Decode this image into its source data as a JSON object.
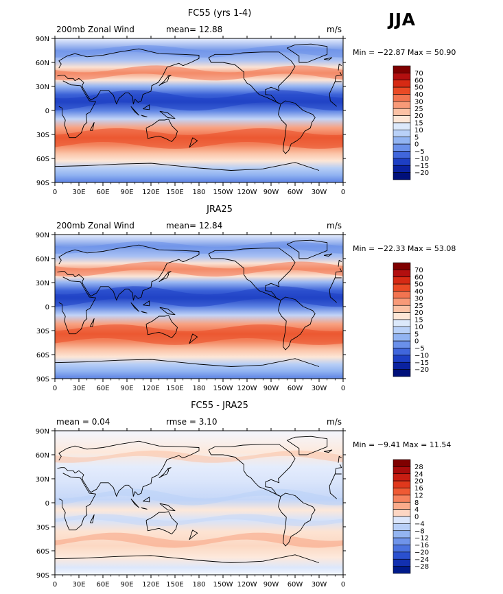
{
  "season": "JJA",
  "chart_data": [
    {
      "type": "heatmap",
      "title": "FC55 (yrs 1-4)",
      "left_label": "200mb Zonal Wind",
      "center_label": "mean=   12.88",
      "units": "m/s",
      "minmax": "Min = −22.87  Max =   50.90",
      "x_ticks": [
        "0",
        "30E",
        "60E",
        "90E",
        "120E",
        "150E",
        "180",
        "150W",
        "120W",
        "90W",
        "60W",
        "30W",
        "0"
      ],
      "y_ticks": [
        "90N",
        "60N",
        "30N",
        "0",
        "30S",
        "60S",
        "90S"
      ],
      "levels": [
        "70",
        "60",
        "50",
        "40",
        "30",
        "25",
        "20",
        "15",
        "10",
        "5",
        "0",
        "−5",
        "−10",
        "−15",
        "−20"
      ],
      "colors": [
        "#7f0000",
        "#b30f0f",
        "#d62a14",
        "#ea4a25",
        "#f27450",
        "#f89a78",
        "#fbc1a4",
        "#fde6d6",
        "#dce9fb",
        "#b9d1f8",
        "#92b4f2",
        "#6a90ea",
        "#4066dc",
        "#1d3fc4",
        "#0a22a0",
        "#00107a"
      ]
    },
    {
      "type": "heatmap",
      "title": "JRA25",
      "left_label": "200mb Zonal Wind",
      "center_label": "mean=   12.84",
      "units": "m/s",
      "minmax": "Min = −22.33  Max =   53.08",
      "x_ticks": [
        "0",
        "30E",
        "60E",
        "90E",
        "120E",
        "150E",
        "180",
        "150W",
        "120W",
        "90W",
        "60W",
        "30W",
        "0"
      ],
      "y_ticks": [
        "90N",
        "60N",
        "30N",
        "0",
        "30S",
        "60S",
        "90S"
      ],
      "levels": [
        "70",
        "60",
        "50",
        "40",
        "30",
        "25",
        "20",
        "15",
        "10",
        "5",
        "0",
        "−5",
        "−10",
        "−15",
        "−20"
      ],
      "colors": [
        "#7f0000",
        "#b30f0f",
        "#d62a14",
        "#ea4a25",
        "#f27450",
        "#f89a78",
        "#fbc1a4",
        "#fde6d6",
        "#dce9fb",
        "#b9d1f8",
        "#92b4f2",
        "#6a90ea",
        "#4066dc",
        "#1d3fc4",
        "#0a22a0",
        "#00107a"
      ]
    },
    {
      "type": "heatmap",
      "title": "FC55 - JRA25",
      "left_label": "mean =     0.04",
      "center_label": "rmse =     3.10",
      "units": "m/s",
      "minmax": "Min =   −9.41  Max =   11.54",
      "x_ticks": [
        "0",
        "30E",
        "60E",
        "90E",
        "120E",
        "150E",
        "180",
        "150W",
        "120W",
        "90W",
        "60W",
        "30W",
        "0"
      ],
      "y_ticks": [
        "90N",
        "60N",
        "30N",
        "0",
        "30S",
        "60S",
        "90S"
      ],
      "levels": [
        "28",
        "24",
        "20",
        "16",
        "12",
        "8",
        "4",
        "0",
        "−4",
        "−8",
        "−12",
        "−16",
        "−20",
        "−24",
        "−28"
      ],
      "colors": [
        "#7f0000",
        "#a80c0c",
        "#c81d12",
        "#e0381c",
        "#ef5a34",
        "#f6825e",
        "#fbab8b",
        "#fdd6c3",
        "#dbe6fb",
        "#b8cff7",
        "#94b5f1",
        "#6f94ea",
        "#4a72df",
        "#2a50cf",
        "#1230b0",
        "#001a8a"
      ]
    }
  ]
}
